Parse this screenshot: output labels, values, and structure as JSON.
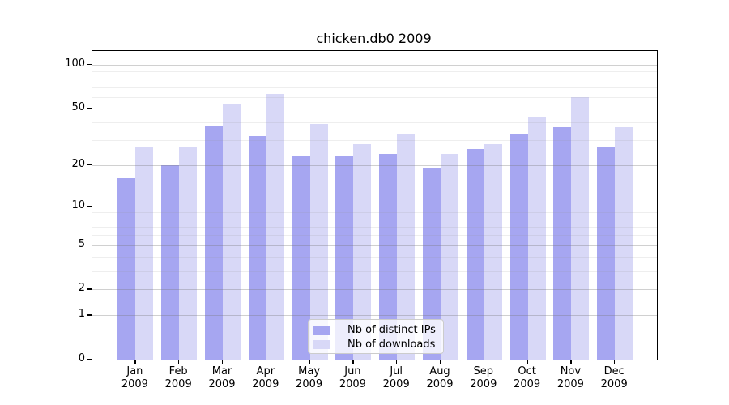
{
  "chart_data": {
    "type": "bar",
    "title": "chicken.db0 2009",
    "categories": [
      "Jan",
      "Feb",
      "Mar",
      "Apr",
      "May",
      "Jun",
      "Jul",
      "Aug",
      "Sep",
      "Oct",
      "Nov",
      "Dec"
    ],
    "category_year": "2009",
    "series": [
      {
        "name": "Nb of distinct IPs",
        "color": "#a6a6f1",
        "values": [
          16,
          20,
          38,
          32,
          23,
          23,
          24,
          19,
          26,
          33,
          37,
          27
        ]
      },
      {
        "name": "Nb of downloads",
        "color": "#d8d8f7",
        "values": [
          27,
          27,
          54,
          63,
          39,
          28,
          33,
          24,
          28,
          43,
          60,
          37
        ]
      }
    ],
    "yscale": "log1p",
    "ylim": [
      0,
      125
    ],
    "yticks_major": [
      0,
      1,
      2,
      5,
      10,
      20,
      50,
      100
    ],
    "yticks_minor": [
      3,
      4,
      6,
      7,
      8,
      9,
      30,
      40,
      60,
      70,
      80,
      90
    ],
    "grid": true,
    "grid_above_bars": true,
    "legend_position": "lower center",
    "xlabel": "",
    "ylabel": ""
  },
  "colors": {
    "background": "#ffffff",
    "spine": "#000000",
    "text": "#000000",
    "grid_major": "#d4d4d4",
    "grid_minor": "#ebebeb",
    "legend_border": "#cccccc"
  }
}
